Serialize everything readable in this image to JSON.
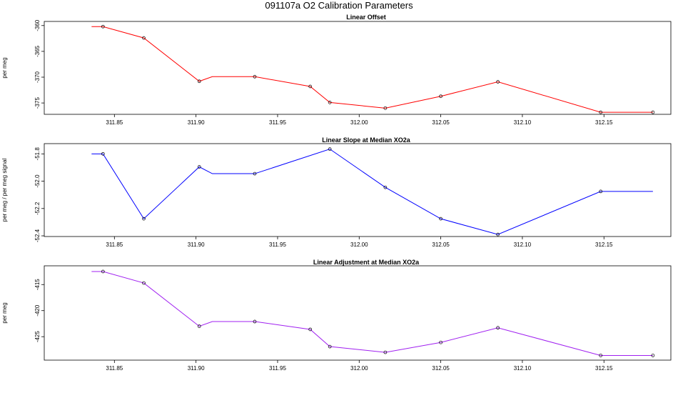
{
  "figure": {
    "title": "091107a   O2 Calibration Parameters"
  },
  "chart_data": [
    {
      "type": "line",
      "title": "Linear Offset",
      "ylabel": "per meg",
      "xlabel": "",
      "color": "#ff0000",
      "xlim": [
        311.807,
        312.191
      ],
      "ylim": [
        -377.2,
        -359.2
      ],
      "xticks": [
        "311.85",
        "311.90",
        "311.95",
        "312.00",
        "312.05",
        "312.10",
        "312.15"
      ],
      "yticks": [
        "-360",
        "-365",
        "-370",
        "-375"
      ],
      "series": [
        {
          "x": [
            311.836,
            311.843,
            311.868,
            311.902,
            311.91,
            311.936,
            311.97,
            311.982,
            312.016,
            312.05,
            312.085,
            312.148,
            312.18
          ],
          "y": [
            -360.2,
            -360.2,
            -362.4,
            -370.8,
            -369.9,
            -369.9,
            -371.8,
            -374.9,
            -376.0,
            -373.7,
            -370.9,
            -376.8,
            -376.8
          ],
          "markers": [
            false,
            true,
            true,
            true,
            false,
            true,
            true,
            true,
            true,
            true,
            true,
            true,
            true
          ]
        }
      ]
    },
    {
      "type": "line",
      "title": "Linear Slope at Median XO2a",
      "ylabel": "per meg / per meg signal",
      "xlabel": "",
      "color": "#0000ff",
      "xlim": [
        311.807,
        312.191
      ],
      "ylim": [
        -52.405,
        -51.725
      ],
      "xticks": [
        "311.85",
        "311.90",
        "311.95",
        "312.00",
        "312.05",
        "312.10",
        "312.15"
      ],
      "yticks": [
        "-51.8",
        "-52.0",
        "-52.2",
        "-52.4"
      ],
      "series": [
        {
          "x": [
            311.836,
            311.843,
            311.868,
            311.902,
            311.91,
            311.936,
            311.982,
            312.016,
            312.05,
            312.085,
            312.148,
            312.18
          ],
          "y": [
            -51.8,
            -51.8,
            -52.275,
            -51.895,
            -51.945,
            -51.945,
            -51.765,
            -52.045,
            -52.275,
            -52.39,
            -52.075,
            -52.075
          ],
          "markers": [
            false,
            true,
            true,
            true,
            false,
            true,
            true,
            true,
            true,
            true,
            true,
            false
          ]
        }
      ]
    },
    {
      "type": "line",
      "title": "Linear Adjustment at Median XO2a",
      "ylabel": "per meg",
      "xlabel": "",
      "color": "#a020f0",
      "xlim": [
        311.807,
        312.191
      ],
      "ylim": [
        -429.5,
        -411.4
      ],
      "xticks": [
        "311.85",
        "311.90",
        "311.95",
        "312.00",
        "312.05",
        "312.10",
        "312.15"
      ],
      "yticks": [
        "-415",
        "-420",
        "-425"
      ],
      "series": [
        {
          "x": [
            311.836,
            311.843,
            311.868,
            311.902,
            311.91,
            311.936,
            311.97,
            311.982,
            312.016,
            312.05,
            312.085,
            312.148,
            312.18
          ],
          "y": [
            -412.5,
            -412.5,
            -414.7,
            -423.0,
            -422.1,
            -422.1,
            -423.6,
            -426.9,
            -428.0,
            -426.1,
            -423.3,
            -428.6,
            -428.6
          ],
          "markers": [
            false,
            true,
            true,
            true,
            false,
            true,
            true,
            true,
            true,
            true,
            true,
            true,
            true
          ]
        }
      ]
    }
  ]
}
